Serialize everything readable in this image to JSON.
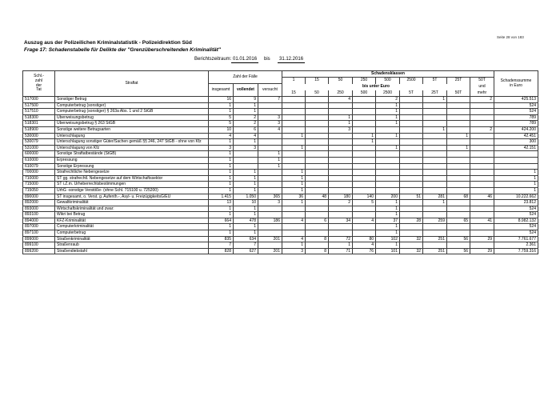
{
  "page": {
    "page_number": "Seite 28 von 183"
  },
  "header": {
    "title": "Auszug aus der Polizeilichen Kriminalstatistik - Polizeidirektion Süd",
    "subtitle": "Frage 17: Schadenstabelle für Delikte der \"Grenzüberschreitenden Kriminalität\"",
    "report_period_label": "Berichtszeitraum:",
    "period_start": "01.01.2016",
    "period_separator": "bis",
    "period_end": "31.12.2016"
  },
  "table": {
    "col_headers": {
      "key_lines": [
        "Schl.-",
        "zahl",
        "der",
        "Tat"
      ],
      "offense": "Straftat",
      "cases_group": "Zahl der Fälle",
      "cases_cols": [
        "insgesamt",
        "vollendet",
        "versucht"
      ],
      "damage_group": "Schadensklassen",
      "damage_upper": [
        "1",
        "15",
        "50",
        "250",
        "500",
        "2500",
        "5T",
        "25T",
        "50T"
      ],
      "damage_mid": "bis unter Euro",
      "damage_mid_last": "und",
      "damage_lower": [
        "15",
        "50",
        "250",
        "500",
        "2500",
        "5T",
        "25T",
        "50T",
        "mehr"
      ],
      "sum_lines": [
        "Schadenssumme",
        "in Euro"
      ]
    },
    "rows": [
      [
        "517000",
        "Sonstiger Betrug",
        "16",
        "9",
        "7",
        "",
        "",
        "4",
        "",
        "2",
        "",
        "1",
        "",
        "2",
        "425.513"
      ],
      [
        "517500",
        "Computerbetrug (sonstiger)",
        "1",
        "1",
        "",
        "",
        "",
        "",
        "",
        "1",
        "",
        "",
        "",
        "",
        "524"
      ],
      [
        "517510",
        "Computerbetrug (sonstiger) § 263a Abs. 1 und 2 StGB",
        "1",
        "1",
        "",
        "",
        "",
        "",
        "",
        "1",
        "",
        "",
        "",
        "",
        "524"
      ],
      [
        "518300",
        "Überweisungsbetrug",
        "5",
        "2",
        "3",
        "",
        "",
        "1",
        "",
        "1",
        "",
        "",
        "",
        "",
        "789"
      ],
      [
        "518301",
        "Überweisungsbetrug § 263 StGB",
        "5",
        "2",
        "3",
        "",
        "",
        "1",
        "",
        "1",
        "",
        "",
        "",
        "",
        "789"
      ],
      [
        "518900",
        "Sonstige weitere Betrugsarten",
        "10",
        "6",
        "4",
        "",
        "",
        "3",
        "",
        "",
        "",
        "1",
        "",
        "2",
        "424.200"
      ],
      [
        "530000",
        "Unterschlagung",
        "4",
        "4",
        "",
        "1",
        "",
        "",
        "1",
        "1",
        "",
        "",
        "1",
        "",
        "42.451"
      ],
      [
        "530079",
        "Unterschlagung sonstiger Güter/Sachen gemäß §§ 246, 247 StGB - ohne von Kfz",
        "1",
        "1",
        "",
        "",
        "",
        "",
        "1",
        "",
        "",
        "",
        "",
        "",
        "300"
      ],
      [
        "531000",
        "Unterschlagung von Kfz",
        "3",
        "3",
        "",
        "1",
        "",
        "",
        "",
        "1",
        "",
        "",
        "1",
        "",
        "42.151"
      ],
      [
        "600000",
        "Sonstige Straftatbestände (StGB)",
        "1",
        "",
        "1",
        "",
        "",
        "",
        "",
        "",
        "",
        "",
        "",
        "",
        ""
      ],
      [
        "610000",
        "Erpressung",
        "1",
        "",
        "1",
        "",
        "",
        "",
        "",
        "",
        "",
        "",
        "",
        "",
        ""
      ],
      [
        "610079",
        "Sonstige Erpressung",
        "1",
        "",
        "1",
        "",
        "",
        "",
        "",
        "",
        "",
        "",
        "",
        "",
        ""
      ],
      [
        "700000",
        "Strafrechtliche Nebengesetze",
        "1",
        "1",
        "",
        "1",
        "",
        "",
        "",
        "",
        "",
        "",
        "",
        "",
        "1"
      ],
      [
        "710000",
        "ST gg. strafrechtl. Nebengesetze auf dem Wirtschaftssektor",
        "1",
        "1",
        "",
        "1",
        "",
        "",
        "",
        "",
        "",
        "",
        "",
        "",
        "1"
      ],
      [
        "715000",
        "ST i.Z.m. Urheberrechtsbestimmungen",
        "1",
        "1",
        "",
        "1",
        "",
        "",
        "",
        "",
        "",
        "",
        "",
        "",
        "1"
      ],
      [
        "715050",
        "UrhG -sonstige Verstöße- (ohne Schl. 715100 u. 725200)",
        "1",
        "1",
        "",
        "1",
        "",
        "",
        "",
        "",
        "",
        "",
        "",
        "",
        "1"
      ],
      [
        "890000",
        "ST insgesamt, o. Verst. g. Aufenth.-, Asyl- u. FreizügigkeitsG/EU",
        "1.415",
        "1.050",
        "365",
        "36",
        "48",
        "180",
        "140",
        "200",
        "51",
        "281",
        "68",
        "46",
        "10.222.662"
      ],
      [
        "892000",
        "Gewaltkriminalität",
        "13",
        "10",
        "3",
        "1",
        "",
        "2",
        "5",
        "1",
        "",
        "1",
        "",
        "",
        "23.812"
      ],
      [
        "893000",
        "Wirtschaftskriminalität und zwar:",
        "1",
        "1",
        "",
        "",
        "",
        "",
        "",
        "1",
        "",
        "",
        "",
        "",
        "524"
      ],
      [
        "893100",
        "Wikri bei Betrug",
        "1",
        "1",
        "",
        "",
        "",
        "",
        "",
        "1",
        "",
        "",
        "",
        "",
        "524"
      ],
      [
        "894000",
        "KFZ-Kriminalität",
        "664",
        "478",
        "186",
        "4",
        "6",
        "34",
        "4",
        "37",
        "28",
        "259",
        "65",
        "41",
        "8.982.132"
      ],
      [
        "897000",
        "Computerkriminalität",
        "1",
        "1",
        "",
        "",
        "",
        "",
        "",
        "1",
        "",
        "",
        "",
        "",
        "524"
      ],
      [
        "897100",
        "Computerbetrug",
        "1",
        "1",
        "",
        "",
        "",
        "",
        "",
        "1",
        "",
        "",
        "",
        "",
        "524"
      ],
      [
        "899000",
        "Straßenkriminalität",
        "835",
        "634",
        "201",
        "4",
        "8",
        "72",
        "80",
        "102",
        "32",
        "251",
        "56",
        "29",
        "7.761.677"
      ],
      [
        "899100",
        "Straßenraub",
        "7",
        "7",
        "",
        "1",
        "",
        "1",
        "4",
        "1",
        "",
        "",
        "",
        "",
        "2.361"
      ],
      [
        "899200",
        "Straßendiebstahl",
        "828",
        "627",
        "201",
        "3",
        "8",
        "71",
        "76",
        "101",
        "32",
        "251",
        "56",
        "29",
        "7.759.316"
      ]
    ]
  }
}
